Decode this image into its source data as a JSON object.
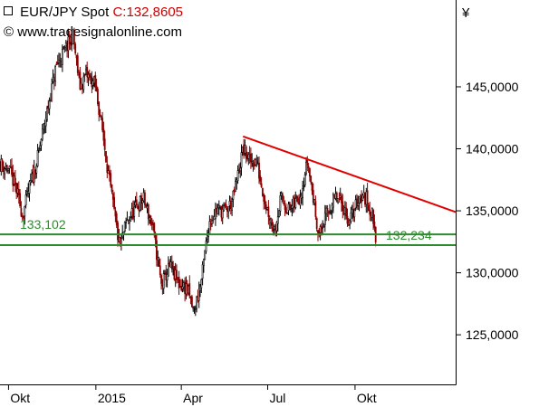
{
  "header": {
    "symbol_label": "EUR/JPY Spot",
    "close_label": "C:132,8605",
    "copyright_symbol": "©",
    "website": "www.tradesignalonline.com"
  },
  "currency_symbol": "¥",
  "colors": {
    "candle_up": "#000000",
    "candle_down": "#8b0000",
    "trendline": "#e00000",
    "support": "#2e8b2e",
    "axis": "#000000"
  },
  "chart_data": {
    "type": "candlestick",
    "title": "EUR/JPY Spot",
    "ylim": [
      121,
      152
    ],
    "y_ticks": [
      {
        "value": 125,
        "label": "125,0000"
      },
      {
        "value": 130,
        "label": "130,0000"
      },
      {
        "value": 135,
        "label": "135,0000"
      },
      {
        "value": 140,
        "label": "140,0000"
      },
      {
        "value": 145,
        "label": "145,0000"
      }
    ],
    "x_ticks": [
      "Okt",
      "2015",
      "Apr",
      "Jul",
      "Okt"
    ],
    "x_tick_dates": [
      "2014-10-01",
      "2015-01-01",
      "2015-04-01",
      "2015-07-01",
      "2015-10-01"
    ],
    "date_range": [
      "2014-09-22",
      "2016-01-15"
    ],
    "grid": false,
    "price_path": [
      [
        "2014-09-22",
        138.8
      ],
      [
        "2014-10-01",
        138.3
      ],
      [
        "2014-10-08",
        137.0
      ],
      [
        "2014-10-16",
        134.6
      ],
      [
        "2014-10-22",
        136.6
      ],
      [
        "2014-10-31",
        139.0
      ],
      [
        "2014-11-05",
        141.0
      ],
      [
        "2014-11-12",
        143.5
      ],
      [
        "2014-11-20",
        146.6
      ],
      [
        "2014-11-28",
        147.8
      ],
      [
        "2014-12-08",
        149.1
      ],
      [
        "2014-12-15",
        145.0
      ],
      [
        "2014-12-22",
        146.0
      ],
      [
        "2014-12-31",
        145.2
      ],
      [
        "2015-01-07",
        142.0
      ],
      [
        "2015-01-15",
        137.5
      ],
      [
        "2015-01-22",
        134.0
      ],
      [
        "2015-01-26",
        132.0
      ],
      [
        "2015-02-02",
        134.0
      ],
      [
        "2015-02-10",
        135.0
      ],
      [
        "2015-02-20",
        136.0
      ],
      [
        "2015-03-02",
        133.6
      ],
      [
        "2015-03-11",
        129.0
      ],
      [
        "2015-03-20",
        130.5
      ],
      [
        "2015-03-30",
        129.0
      ],
      [
        "2015-04-07",
        128.8
      ],
      [
        "2015-04-14",
        126.8
      ],
      [
        "2015-04-22",
        129.3
      ],
      [
        "2015-04-30",
        134.0
      ],
      [
        "2015-05-08",
        135.1
      ],
      [
        "2015-05-18",
        135.0
      ],
      [
        "2015-05-25",
        135.8
      ],
      [
        "2015-06-02",
        138.8
      ],
      [
        "2015-06-05",
        140.0
      ],
      [
        "2015-06-12",
        139.0
      ],
      [
        "2015-06-19",
        139.0
      ],
      [
        "2015-06-29",
        135.5
      ],
      [
        "2015-07-08",
        133.5
      ],
      [
        "2015-07-15",
        136.0
      ],
      [
        "2015-07-24",
        135.0
      ],
      [
        "2015-08-04",
        136.2
      ],
      [
        "2015-08-12",
        139.0
      ],
      [
        "2015-08-18",
        136.0
      ],
      [
        "2015-08-24",
        133.0
      ],
      [
        "2015-09-01",
        134.7
      ],
      [
        "2015-09-10",
        136.0
      ],
      [
        "2015-09-18",
        135.5
      ],
      [
        "2015-09-25",
        134.0
      ],
      [
        "2015-10-05",
        136.2
      ],
      [
        "2015-10-13",
        136.0
      ],
      [
        "2015-10-20",
        134.4
      ],
      [
        "2015-10-23",
        132.9
      ]
    ],
    "trendline": {
      "from": [
        "2015-06-05",
        141.0
      ],
      "to": [
        "2016-01-15",
        134.9
      ]
    },
    "support_levels": [
      {
        "value": 133.102,
        "label": "133,102"
      },
      {
        "value": 132.234,
        "label": "132,234"
      }
    ]
  }
}
